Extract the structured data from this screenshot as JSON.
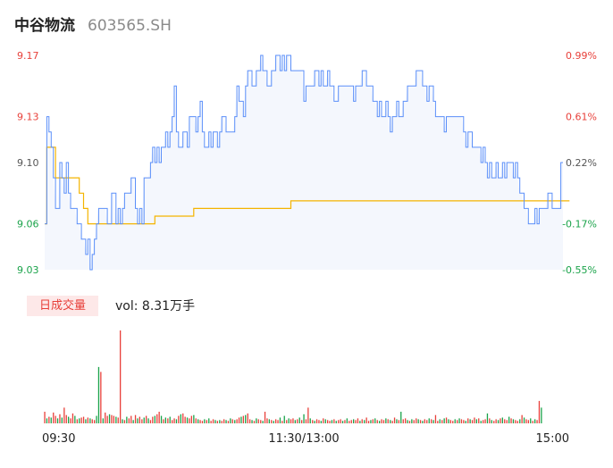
{
  "header": {
    "name": "中谷物流",
    "code": "603565.SH"
  },
  "volume": {
    "tag": "日成交量",
    "text": "vol: 8.31万手"
  },
  "colors": {
    "price": "#5b8ff9",
    "avg": "#f4b400",
    "up": "#e8403a",
    "down": "#1aa34a",
    "area": "#f4f7fd"
  },
  "chart_data": {
    "type": "line",
    "title": "",
    "ylim": [
      9.03,
      9.17
    ],
    "y_ticks": [
      {
        "label": "9.17",
        "value": 9.17,
        "pct": "0.99%",
        "color": "#e8403a"
      },
      {
        "label": "9.13",
        "value": 9.13,
        "pct": "0.61%",
        "color": "#e8403a"
      },
      {
        "label": "9.10",
        "value": 9.1,
        "pct": "0.22%",
        "color": "#555555"
      },
      {
        "label": "9.06",
        "value": 9.06,
        "pct": "-0.17%",
        "color": "#1aa34a"
      },
      {
        "label": "9.03",
        "value": 9.03,
        "pct": "-0.55%",
        "color": "#1aa34a"
      }
    ],
    "x_ticks": [
      {
        "label": "09:30",
        "index": 0
      },
      {
        "label": "11:30/13:00",
        "index": 120
      },
      {
        "label": "15:00",
        "index": 240
      }
    ],
    "series": [
      {
        "key": "price",
        "values": [
          9.06,
          9.13,
          9.12,
          9.11,
          9.09,
          9.07,
          9.07,
          9.1,
          9.09,
          9.08,
          9.1,
          9.08,
          9.07,
          9.07,
          9.07,
          9.06,
          9.06,
          9.05,
          9.05,
          9.04,
          9.05,
          9.03,
          9.04,
          9.05,
          9.06,
          9.07,
          9.07,
          9.07,
          9.07,
          9.06,
          9.06,
          9.08,
          9.08,
          9.06,
          9.07,
          9.06,
          9.07,
          9.08,
          9.08,
          9.08,
          9.09,
          9.09,
          9.07,
          9.06,
          9.07,
          9.06,
          9.09,
          9.09,
          9.09,
          9.1,
          9.11,
          9.1,
          9.11,
          9.1,
          9.11,
          9.11,
          9.12,
          9.11,
          9.12,
          9.13,
          9.15,
          9.12,
          9.11,
          9.11,
          9.12,
          9.12,
          9.11,
          9.13,
          9.13,
          9.13,
          9.12,
          9.13,
          9.14,
          9.12,
          9.11,
          9.11,
          9.12,
          9.11,
          9.12,
          9.12,
          9.11,
          9.12,
          9.13,
          9.13,
          9.12,
          9.12,
          9.12,
          9.12,
          9.13,
          9.15,
          9.14,
          9.14,
          9.13,
          9.15,
          9.16,
          9.16,
          9.15,
          9.15,
          9.16,
          9.16,
          9.17,
          9.16,
          9.16,
          9.15,
          9.15,
          9.16,
          9.16,
          9.17,
          9.17,
          9.16,
          9.17,
          9.16,
          9.17,
          9.17,
          9.16,
          9.16,
          9.16,
          9.16,
          9.16,
          9.16,
          9.14,
          9.15,
          9.15,
          9.15,
          9.15,
          9.16,
          9.16,
          9.15,
          9.16,
          9.15,
          9.15,
          9.16,
          9.15,
          9.15,
          9.14,
          9.14,
          9.15,
          9.15,
          9.15,
          9.15,
          9.15,
          9.15,
          9.15,
          9.14,
          9.15,
          9.15,
          9.15,
          9.16,
          9.16,
          9.15,
          9.15,
          9.15,
          9.14,
          9.14,
          9.13,
          9.14,
          9.13,
          9.13,
          9.14,
          9.13,
          9.12,
          9.13,
          9.13,
          9.14,
          9.13,
          9.13,
          9.14,
          9.14,
          9.15,
          9.15,
          9.15,
          9.15,
          9.16,
          9.16,
          9.16,
          9.15,
          9.15,
          9.14,
          9.15,
          9.15,
          9.14,
          9.13,
          9.13,
          9.13,
          9.13,
          9.12,
          9.13,
          9.13,
          9.13,
          9.13,
          9.13,
          9.13,
          9.13,
          9.13,
          9.12,
          9.11,
          9.12,
          9.12,
          9.11,
          9.11,
          9.11,
          9.11,
          9.1,
          9.11,
          9.1,
          9.09,
          9.1,
          9.09,
          9.09,
          9.1,
          9.09,
          9.09,
          9.1,
          9.09,
          9.1,
          9.1,
          9.1,
          9.09,
          9.1,
          9.09,
          9.08,
          9.08,
          9.07,
          9.07,
          9.06,
          9.06,
          9.06,
          9.07,
          9.06,
          9.07,
          9.07,
          9.07,
          9.07,
          9.08,
          9.08,
          9.07,
          9.07,
          9.07,
          9.07,
          9.1,
          9.1
        ]
      },
      {
        "key": "avg",
        "values": [
          9.06,
          9.11,
          9.11,
          9.11,
          9.11,
          9.09,
          9.09,
          9.09,
          9.09,
          9.09,
          9.09,
          9.09,
          9.09,
          9.09,
          9.09,
          9.09,
          9.08,
          9.08,
          9.07,
          9.07,
          9.06,
          9.06,
          9.06,
          9.06,
          9.06,
          9.06,
          9.06,
          9.06,
          9.06,
          9.06,
          9.06,
          9.06,
          9.06,
          9.06,
          9.06,
          9.06,
          9.06,
          9.06,
          9.06,
          9.06,
          9.06,
          9.06,
          9.06,
          9.06,
          9.06,
          9.06,
          9.06,
          9.06,
          9.06,
          9.06,
          9.06,
          9.065,
          9.065,
          9.065,
          9.065,
          9.065,
          9.065,
          9.065,
          9.065,
          9.065,
          9.065,
          9.065,
          9.065,
          9.065,
          9.065,
          9.065,
          9.065,
          9.065,
          9.065,
          9.07,
          9.07,
          9.07,
          9.07,
          9.07,
          9.07,
          9.07,
          9.07,
          9.07,
          9.07,
          9.07,
          9.07,
          9.07,
          9.07,
          9.07,
          9.07,
          9.07,
          9.07,
          9.07,
          9.07,
          9.07,
          9.07,
          9.07,
          9.07,
          9.07,
          9.07,
          9.07,
          9.07,
          9.07,
          9.07,
          9.07,
          9.07,
          9.07,
          9.07,
          9.07,
          9.07,
          9.07,
          9.07,
          9.07,
          9.07,
          9.07,
          9.07,
          9.07,
          9.07,
          9.07,
          9.075,
          9.075,
          9.075,
          9.075,
          9.075,
          9.075,
          9.075,
          9.075,
          9.075,
          9.075,
          9.075,
          9.075,
          9.075,
          9.075,
          9.075,
          9.075,
          9.075,
          9.075,
          9.075,
          9.075,
          9.075,
          9.075,
          9.075,
          9.075,
          9.075,
          9.075,
          9.075,
          9.075,
          9.075,
          9.075,
          9.075,
          9.075,
          9.075,
          9.075,
          9.075,
          9.075,
          9.075,
          9.075,
          9.075,
          9.075,
          9.075,
          9.075,
          9.075,
          9.075,
          9.075,
          9.075,
          9.075,
          9.075,
          9.075,
          9.075,
          9.075,
          9.075,
          9.075,
          9.075,
          9.075,
          9.075,
          9.075,
          9.075,
          9.075,
          9.075,
          9.075,
          9.075,
          9.075,
          9.075,
          9.075,
          9.075,
          9.075,
          9.075,
          9.075,
          9.075,
          9.075,
          9.075,
          9.075,
          9.075,
          9.075,
          9.075,
          9.075,
          9.075,
          9.075,
          9.075,
          9.075,
          9.075,
          9.075,
          9.075,
          9.075,
          9.075,
          9.075,
          9.075,
          9.075,
          9.075,
          9.075,
          9.075,
          9.075,
          9.075,
          9.075,
          9.075,
          9.075,
          9.075,
          9.075,
          9.075,
          9.075,
          9.075,
          9.075,
          9.075,
          9.075,
          9.075,
          9.075,
          9.075,
          9.075,
          9.075,
          9.075,
          9.075,
          9.075,
          9.075,
          9.075,
          9.075,
          9.075,
          9.075,
          9.075,
          9.075,
          9.075,
          9.075,
          9.075,
          9.075,
          9.075,
          9.075,
          9.075,
          9.075,
          9.075,
          9.075
        ]
      }
    ],
    "volume_values": [
      1400,
      600,
      800,
      700,
      1300,
      900,
      600,
      1100,
      700,
      1900,
      1000,
      800,
      600,
      1200,
      900,
      500,
      600,
      700,
      800,
      500,
      700,
      600,
      500,
      400,
      900,
      6800,
      6200,
      600,
      1300,
      900,
      1100,
      1000,
      900,
      800,
      700,
      11200,
      500,
      400,
      800,
      600,
      900,
      400,
      1000,
      600,
      800,
      500,
      700,
      900,
      600,
      400,
      800,
      900,
      1100,
      1400,
      900,
      500,
      700,
      600,
      800,
      400,
      600,
      500,
      900,
      1100,
      1200,
      800,
      700,
      600,
      900,
      1000,
      600,
      500,
      400,
      300,
      500,
      400,
      600,
      300,
      500,
      400,
      300,
      400,
      300,
      500,
      400,
      300,
      600,
      500,
      400,
      500,
      700,
      800,
      900,
      1000,
      1200,
      500,
      400,
      300,
      600,
      500,
      400,
      300,
      1400,
      600,
      500,
      400,
      300,
      500,
      400,
      700,
      300,
      900,
      400,
      600,
      500,
      600,
      400,
      500,
      700,
      400,
      1100,
      500,
      1900,
      600,
      400,
      300,
      500,
      400,
      300,
      600,
      500,
      400,
      300,
      400,
      500,
      300,
      400,
      500,
      300,
      400,
      600,
      300,
      400,
      500,
      400,
      600,
      300,
      500,
      400,
      700,
      300,
      400,
      500,
      600,
      400,
      300,
      500,
      400,
      600,
      500,
      400,
      300,
      700,
      500,
      400,
      1400,
      500,
      600,
      400,
      300,
      500,
      400,
      600,
      500,
      400,
      300,
      500,
      400,
      600,
      500,
      400,
      1000,
      300,
      500,
      400,
      600,
      700,
      500,
      400,
      300,
      500,
      400,
      600,
      500,
      400,
      300,
      600,
      500,
      400,
      700,
      500,
      600,
      300,
      400,
      500,
      1200,
      600,
      400,
      300,
      500,
      400,
      600,
      700,
      500,
      400,
      800,
      600,
      500,
      400,
      300,
      500,
      1000,
      700,
      500,
      400,
      600,
      300,
      500,
      400,
      2700,
      1900
    ],
    "volume_up": [
      1,
      0,
      1,
      0,
      1,
      1,
      0,
      1,
      0,
      1,
      1,
      0,
      1,
      1,
      0,
      1,
      0,
      1,
      1,
      0,
      1,
      0,
      1,
      1,
      0,
      0,
      1,
      0,
      1,
      1,
      0,
      1,
      1,
      0,
      1,
      1,
      0,
      1,
      0,
      1,
      1,
      0,
      1,
      0,
      1,
      1,
      0,
      1,
      0,
      1,
      1,
      0,
      1,
      1,
      0,
      1,
      0,
      1,
      0,
      1,
      1,
      0,
      1,
      0,
      1,
      1,
      0,
      1,
      1,
      0,
      1,
      0,
      1,
      1,
      0,
      1,
      0,
      1,
      1,
      0,
      1,
      0,
      1,
      1,
      0,
      1,
      0,
      1,
      0,
      1,
      1,
      0,
      1,
      0,
      1,
      1,
      0,
      1,
      0,
      1,
      1,
      0,
      1,
      1,
      0,
      1,
      0,
      1,
      1,
      0,
      1,
      0,
      1,
      0,
      1,
      1,
      0,
      1,
      0,
      1,
      0,
      1,
      1,
      0,
      1,
      0,
      1,
      1,
      0,
      1,
      0,
      1,
      1,
      0,
      1,
      0,
      1,
      1,
      0,
      1,
      0,
      1,
      1,
      0,
      1,
      1,
      0,
      1,
      0,
      1,
      1,
      0,
      1,
      0,
      1,
      0,
      1,
      1,
      0,
      1,
      0,
      1,
      1,
      0,
      1,
      0,
      1,
      1,
      0,
      1,
      0,
      1,
      1,
      0,
      1,
      0,
      1,
      1,
      0,
      1,
      0,
      1,
      1,
      0,
      1,
      0,
      1,
      0,
      1,
      1,
      0,
      1,
      0,
      1,
      1,
      0,
      1,
      0,
      1,
      1,
      0,
      1,
      0,
      1,
      1,
      0,
      1,
      0,
      1,
      1,
      0,
      1,
      0,
      1,
      1,
      0,
      1,
      0,
      1,
      1,
      0,
      1,
      0,
      1,
      1,
      0,
      1,
      0,
      1,
      1,
      0,
      1,
      1,
      1
    ]
  }
}
